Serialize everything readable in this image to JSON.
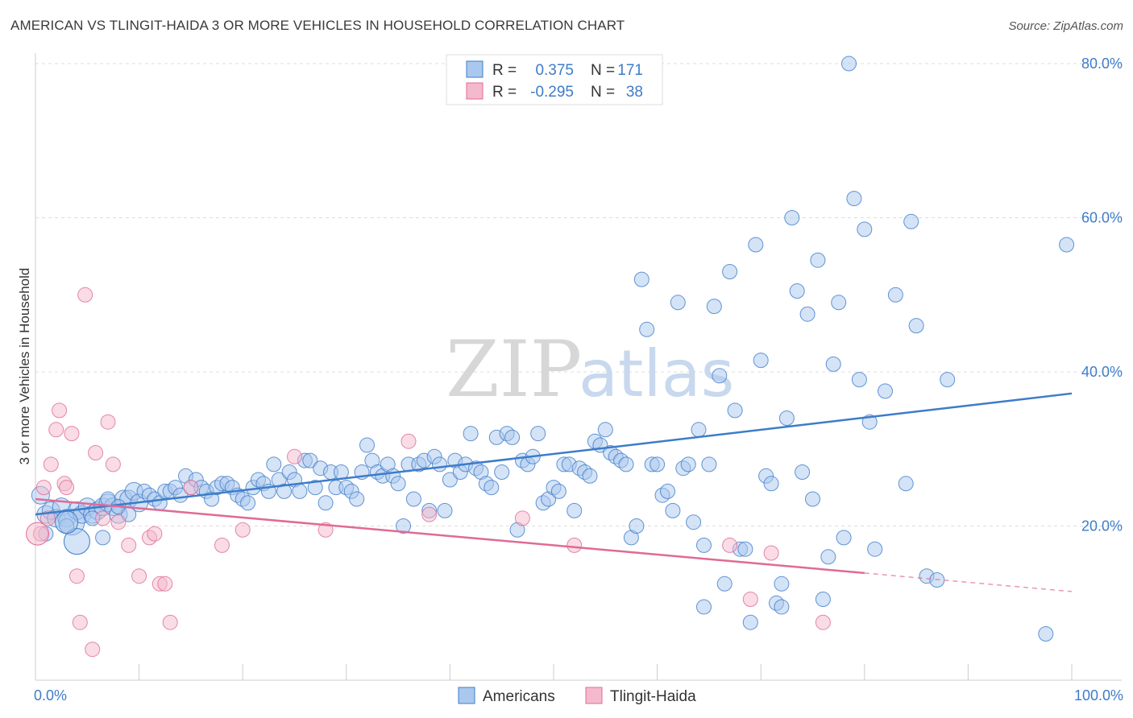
{
  "title": "AMERICAN VS TLINGIT-HAIDA 3 OR MORE VEHICLES IN HOUSEHOLD CORRELATION CHART",
  "source": "Source: ZipAtlas.com",
  "watermark": {
    "zip": "ZIP",
    "atlas": "atlas"
  },
  "colors": {
    "blue": "#3d7cc9",
    "blue_fill": "#aac8ee",
    "pink": "#e06a96",
    "pink_fill": "#f4b9cc"
  },
  "legend": {
    "r_label": "R =",
    "n_label": "N =",
    "rows": [
      {
        "r": "0.375",
        "n": "171"
      },
      {
        "r": "-0.295",
        "n": "38"
      }
    ]
  },
  "bottom_legend": [
    "Americans",
    "Tlingit-Haida"
  ],
  "chart_data": {
    "type": "scatter",
    "title": "AMERICAN VS TLINGIT-HAIDA 3 OR MORE VEHICLES IN HOUSEHOLD CORRELATION CHART",
    "xlabel": "",
    "ylabel": "3 or more Vehicles in Household",
    "xlim": [
      0,
      100
    ],
    "ylim": [
      0,
      82
    ],
    "x_tick_labels": [
      "0.0%",
      "100.0%"
    ],
    "y_ticks": [
      20,
      40,
      60,
      80
    ],
    "y_tick_labels": [
      "20.0%",
      "40.0%",
      "60.0%",
      "80.0%"
    ],
    "grid": true,
    "legend_placement": "top-center",
    "series": [
      {
        "name": "Americans",
        "color": "#3d7cc9",
        "trend": {
          "x": [
            0,
            100
          ],
          "y": [
            21.5,
            37.2
          ],
          "dashed_from": null
        },
        "points": [
          [
            0.5,
            24
          ],
          [
            1,
            21.5
          ],
          [
            1.5,
            22
          ],
          [
            2,
            21
          ],
          [
            2.5,
            22.5
          ],
          [
            3,
            21
          ],
          [
            3.5,
            20.5
          ],
          [
            4,
            22
          ],
          [
            4.5,
            21.5
          ],
          [
            5,
            22.5
          ],
          [
            5.5,
            21.5
          ],
          [
            6,
            22
          ],
          [
            6.5,
            22.5
          ],
          [
            7,
            23
          ],
          [
            7.5,
            22.5
          ],
          [
            8,
            21.5
          ],
          [
            8.5,
            23.5
          ],
          [
            9,
            23.5
          ],
          [
            9.5,
            24.5
          ],
          [
            10,
            23
          ],
          [
            10.5,
            24.5
          ],
          [
            11,
            24
          ],
          [
            11.5,
            23.5
          ],
          [
            12,
            23
          ],
          [
            12.5,
            24.5
          ],
          [
            13,
            24.5
          ],
          [
            13.5,
            25
          ],
          [
            14,
            24
          ],
          [
            14.5,
            26.5
          ],
          [
            15,
            25
          ],
          [
            15.5,
            26
          ],
          [
            16,
            25
          ],
          [
            16.5,
            24.5
          ],
          [
            17,
            23.5
          ],
          [
            17.5,
            25
          ],
          [
            18,
            25.5
          ],
          [
            18.5,
            25.5
          ],
          [
            19,
            25
          ],
          [
            19.5,
            24
          ],
          [
            20,
            23.5
          ],
          [
            20.5,
            23
          ],
          [
            21,
            25
          ],
          [
            21.5,
            26
          ],
          [
            22,
            25.5
          ],
          [
            22.5,
            24.5
          ],
          [
            23,
            28
          ],
          [
            23.5,
            26
          ],
          [
            24,
            24.5
          ],
          [
            24.5,
            27
          ],
          [
            25,
            26
          ],
          [
            25.5,
            24.5
          ],
          [
            26,
            28.5
          ],
          [
            26.5,
            28.5
          ],
          [
            27,
            25
          ],
          [
            27.5,
            27.5
          ],
          [
            28,
            23
          ],
          [
            28.5,
            27
          ],
          [
            29,
            25
          ],
          [
            29.5,
            27
          ],
          [
            30,
            25
          ],
          [
            30.5,
            24.5
          ],
          [
            31,
            23.5
          ],
          [
            31.5,
            27
          ],
          [
            32,
            30.5
          ],
          [
            32.5,
            28.5
          ],
          [
            33,
            27
          ],
          [
            33.5,
            26.5
          ],
          [
            34,
            28
          ],
          [
            34.5,
            26.5
          ],
          [
            35,
            25.5
          ],
          [
            35.5,
            20
          ],
          [
            36,
            28
          ],
          [
            36.5,
            23.5
          ],
          [
            37,
            28
          ],
          [
            37.5,
            28.5
          ],
          [
            38,
            22
          ],
          [
            38.5,
            29
          ],
          [
            39,
            28
          ],
          [
            39.5,
            22
          ],
          [
            40,
            26
          ],
          [
            40.5,
            28.5
          ],
          [
            41,
            27
          ],
          [
            41.5,
            28
          ],
          [
            42,
            32
          ],
          [
            42.5,
            27.5
          ],
          [
            43,
            27
          ],
          [
            43.5,
            25.5
          ],
          [
            44,
            25
          ],
          [
            44.5,
            31.5
          ],
          [
            45,
            27
          ],
          [
            45.5,
            32
          ],
          [
            46,
            31.5
          ],
          [
            46.5,
            19.5
          ],
          [
            47,
            28.5
          ],
          [
            47.5,
            28
          ],
          [
            48,
            29
          ],
          [
            48.5,
            32
          ],
          [
            49,
            23
          ],
          [
            49.5,
            23.5
          ],
          [
            50,
            25
          ],
          [
            50.5,
            24.5
          ],
          [
            51,
            28
          ],
          [
            51.5,
            28
          ],
          [
            52,
            22
          ],
          [
            52.5,
            27.5
          ],
          [
            53,
            27
          ],
          [
            53.5,
            26.5
          ],
          [
            54,
            31
          ],
          [
            54.5,
            30.5
          ],
          [
            55,
            32.5
          ],
          [
            55.5,
            29.5
          ],
          [
            56,
            29
          ],
          [
            56.5,
            28.5
          ],
          [
            57,
            28
          ],
          [
            57.5,
            18.5
          ],
          [
            58,
            20
          ],
          [
            58.5,
            52
          ],
          [
            59,
            45.5
          ],
          [
            59.5,
            28
          ],
          [
            60,
            28
          ],
          [
            60.5,
            24
          ],
          [
            61,
            24.5
          ],
          [
            61.5,
            22
          ],
          [
            62,
            49
          ],
          [
            62.5,
            27.5
          ],
          [
            63,
            28
          ],
          [
            63.5,
            20.5
          ],
          [
            64,
            32.5
          ],
          [
            64.5,
            17.5
          ],
          [
            65,
            28
          ],
          [
            65.5,
            48.5
          ],
          [
            66,
            39.5
          ],
          [
            66.5,
            12.5
          ],
          [
            67,
            53
          ],
          [
            67.5,
            35
          ],
          [
            68,
            17
          ],
          [
            68.5,
            17
          ],
          [
            69,
            7.5
          ],
          [
            69.5,
            56.5
          ],
          [
            70,
            41.5
          ],
          [
            70.5,
            26.5
          ],
          [
            71,
            25.5
          ],
          [
            71.5,
            10
          ],
          [
            72,
            12.5
          ],
          [
            72.5,
            34
          ],
          [
            73,
            60
          ],
          [
            73.5,
            50.5
          ],
          [
            74,
            27
          ],
          [
            74.5,
            47.5
          ],
          [
            75,
            23.5
          ],
          [
            75.5,
            54.5
          ],
          [
            76,
            10.5
          ],
          [
            76.5,
            16
          ],
          [
            77,
            41
          ],
          [
            77.5,
            49
          ],
          [
            78,
            18.5
          ],
          [
            78.5,
            80
          ],
          [
            79,
            62.5
          ],
          [
            79.5,
            39
          ],
          [
            80,
            58.5
          ],
          [
            80.5,
            33.5
          ],
          [
            81,
            17
          ],
          [
            82,
            37.5
          ],
          [
            83,
            50
          ],
          [
            84,
            25.5
          ],
          [
            84.5,
            59.5
          ],
          [
            85,
            46
          ],
          [
            86,
            13.5
          ],
          [
            87,
            13
          ],
          [
            88,
            39
          ],
          [
            97.5,
            6
          ],
          [
            99.5,
            56.5
          ],
          [
            72,
            9.5
          ],
          [
            64.5,
            9.5
          ],
          [
            1,
            19
          ],
          [
            3,
            20
          ],
          [
            5.5,
            21
          ],
          [
            6.5,
            18.5
          ],
          [
            7,
            23.5
          ],
          [
            8,
            22.5
          ],
          [
            9,
            21.5
          ]
        ]
      },
      {
        "name": "Tlingit-Haida",
        "color": "#e06a96",
        "trend": {
          "x": [
            0,
            100
          ],
          "y": [
            23.5,
            11.5
          ],
          "dashed_from": 80
        },
        "points": [
          [
            0.5,
            19
          ],
          [
            0.8,
            25
          ],
          [
            1.2,
            21
          ],
          [
            1.5,
            28
          ],
          [
            2,
            32.5
          ],
          [
            2.3,
            35
          ],
          [
            2.8,
            25.5
          ],
          [
            3,
            25
          ],
          [
            3.5,
            32
          ],
          [
            4,
            13.5
          ],
          [
            4.3,
            7.5
          ],
          [
            4.8,
            50
          ],
          [
            5.5,
            4
          ],
          [
            5.8,
            29.5
          ],
          [
            6.5,
            21
          ],
          [
            7,
            33.5
          ],
          [
            7.5,
            28
          ],
          [
            8,
            20.5
          ],
          [
            9,
            17.5
          ],
          [
            10,
            13.5
          ],
          [
            11,
            18.5
          ],
          [
            11.5,
            19
          ],
          [
            12,
            12.5
          ],
          [
            12.5,
            12.5
          ],
          [
            13,
            7.5
          ],
          [
            15,
            25
          ],
          [
            18,
            17.5
          ],
          [
            20,
            19.5
          ],
          [
            25,
            29
          ],
          [
            28,
            19.5
          ],
          [
            36,
            31
          ],
          [
            38,
            21.5
          ],
          [
            47,
            21
          ],
          [
            52,
            17.5
          ],
          [
            67,
            17.5
          ],
          [
            69,
            10.5
          ],
          [
            71,
            16.5
          ],
          [
            76,
            7.5
          ]
        ]
      }
    ]
  }
}
